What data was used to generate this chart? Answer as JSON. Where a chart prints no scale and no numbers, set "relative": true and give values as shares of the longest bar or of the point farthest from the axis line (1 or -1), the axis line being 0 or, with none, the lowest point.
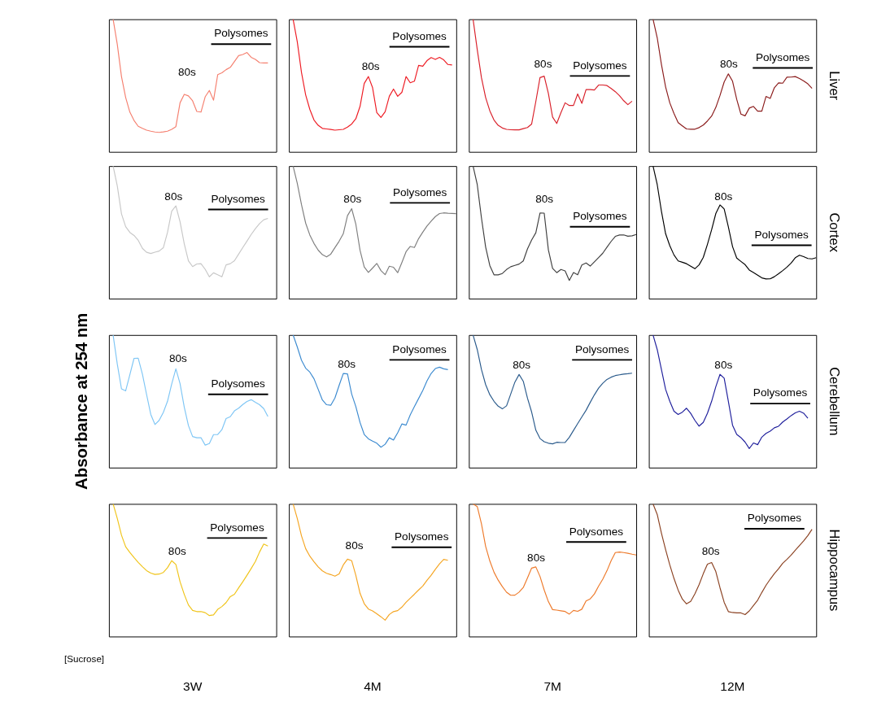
{
  "chart_data": [
    {
      "type": "line",
      "relative": true,
      "tick_labels": false,
      "categories": [
        null,
        null,
        null,
        null,
        null,
        null,
        null,
        null,
        null,
        null,
        null,
        null,
        null,
        null,
        null,
        null,
        null,
        null,
        null,
        null,
        null,
        null,
        null,
        null,
        null,
        null,
        null,
        null,
        null,
        null,
        null,
        null,
        null,
        null,
        null,
        null,
        null,
        null,
        null,
        null,
        null
      ],
      "series": [
        {
          "color": "#f58070",
          "values": [
            null,
            1.0,
            0.81,
            0.568,
            0.41,
            0.3,
            0.237,
            0.193,
            0.178,
            0.164,
            0.156,
            0.15,
            0.147,
            0.151,
            0.156,
            0.17,
            0.19,
            0.37,
            0.434,
            0.422,
            0.385,
            0.305,
            0.3,
            0.415,
            0.463,
            0.39,
            0.582,
            0.596,
            0.62,
            0.637,
            0.681,
            0.726,
            0.734,
            0.749,
            0.713,
            0.697,
            0.673,
            0.671,
            0.671,
            null,
            null
          ]
        }
      ],
      "annotations": [
        "80s",
        "Polysomes"
      ]
    },
    {
      "type": "line",
      "relative": true,
      "tick_labels": false,
      "categories": [
        null,
        null,
        null,
        null,
        null,
        null,
        null,
        null,
        null,
        null,
        null,
        null,
        null,
        null,
        null,
        null,
        null,
        null,
        null,
        null,
        null,
        null,
        null,
        null,
        null,
        null,
        null,
        null,
        null,
        null,
        null,
        null,
        null,
        null,
        null,
        null,
        null,
        null,
        null,
        null,
        null
      ],
      "series": [
        {
          "color": "#ee1c24",
          "values": [
            null,
            1.0,
            0.83,
            0.6,
            0.43,
            0.32,
            0.24,
            0.2,
            0.177,
            0.173,
            0.169,
            0.164,
            0.167,
            0.17,
            0.187,
            0.21,
            0.25,
            0.343,
            0.516,
            0.568,
            0.484,
            0.297,
            0.26,
            0.303,
            0.419,
            0.474,
            0.419,
            0.449,
            0.568,
            0.521,
            0.533,
            0.652,
            0.646,
            0.688,
            0.711,
            0.697,
            0.713,
            0.694,
            0.659,
            0.655,
            null
          ]
        }
      ],
      "annotations": [
        "80s",
        "Polysomes"
      ]
    },
    {
      "type": "line",
      "relative": true,
      "tick_labels": false,
      "categories": [
        null,
        null,
        null,
        null,
        null,
        null,
        null,
        null,
        null,
        null,
        null,
        null,
        null,
        null,
        null,
        null,
        null,
        null,
        null,
        null,
        null,
        null,
        null,
        null,
        null,
        null,
        null,
        null,
        null,
        null,
        null,
        null,
        null,
        null,
        null,
        null,
        null,
        null,
        null,
        null,
        null
      ],
      "series": [
        {
          "color": "#d9202a",
          "values": [
            null,
            1.0,
            0.77,
            0.56,
            0.41,
            0.31,
            0.24,
            0.2,
            0.18,
            0.17,
            0.167,
            0.166,
            0.166,
            0.175,
            0.184,
            0.21,
            0.38,
            0.56,
            0.571,
            0.44,
            0.263,
            0.214,
            0.296,
            0.37,
            0.35,
            0.35,
            0.437,
            0.366,
            0.47,
            0.47,
            0.467,
            0.504,
            0.504,
            0.5,
            0.478,
            0.454,
            0.424,
            0.386,
            0.356,
            0.382,
            null
          ]
        }
      ],
      "annotations": [
        "80s",
        "Polysomes"
      ]
    },
    {
      "type": "line",
      "relative": true,
      "tick_labels": false,
      "y2label": "Liver",
      "categories": [
        null,
        null,
        null,
        null,
        null,
        null,
        null,
        null,
        null,
        null,
        null,
        null,
        null,
        null,
        null,
        null,
        null,
        null,
        null,
        null,
        null,
        null,
        null,
        null,
        null,
        null,
        null,
        null,
        null,
        null,
        null,
        null,
        null,
        null,
        null,
        null,
        null,
        null,
        null,
        null,
        null
      ],
      "series": [
        {
          "color": "#8b1c1c",
          "values": [
            null,
            1.0,
            0.86,
            0.66,
            0.49,
            0.37,
            0.29,
            0.22,
            0.196,
            0.173,
            0.171,
            0.171,
            0.183,
            0.202,
            0.233,
            0.27,
            0.335,
            0.425,
            0.527,
            0.588,
            0.533,
            0.396,
            0.285,
            0.272,
            0.33,
            0.343,
            0.307,
            0.307,
            0.418,
            0.403,
            0.484,
            0.52,
            0.518,
            0.563,
            0.564,
            0.568,
            0.553,
            0.535,
            0.513,
            0.479,
            null
          ]
        }
      ],
      "annotations": [
        "80s",
        "Polysomes"
      ]
    },
    {
      "type": "line",
      "relative": true,
      "tick_labels": false,
      "categories": [
        null,
        null,
        null,
        null,
        null,
        null,
        null,
        null,
        null,
        null,
        null,
        null,
        null,
        null,
        null,
        null,
        null,
        null,
        null,
        null,
        null,
        null,
        null,
        null,
        null,
        null,
        null,
        null,
        null,
        null,
        null,
        null,
        null,
        null,
        null,
        null,
        null,
        null,
        null,
        null,
        null
      ],
      "series": [
        {
          "color": "#c8c8c8",
          "values": [
            null,
            1.0,
            0.85,
            0.64,
            0.543,
            0.5,
            0.477,
            0.44,
            0.38,
            0.35,
            0.341,
            0.351,
            0.359,
            0.384,
            0.5,
            0.66,
            0.7,
            0.58,
            0.414,
            0.285,
            0.242,
            0.262,
            0.264,
            0.222,
            0.165,
            0.195,
            0.181,
            0.165,
            0.255,
            0.264,
            0.286,
            0.336,
            0.386,
            0.434,
            0.484,
            0.528,
            0.566,
            0.595,
            0.605,
            null,
            null
          ]
        }
      ],
      "annotations": [
        "80s",
        "Polysomes"
      ]
    },
    {
      "type": "line",
      "relative": true,
      "tick_labels": false,
      "categories": [
        null,
        null,
        null,
        null,
        null,
        null,
        null,
        null,
        null,
        null,
        null,
        null,
        null,
        null,
        null,
        null,
        null,
        null,
        null,
        null,
        null,
        null,
        null,
        null,
        null,
        null,
        null,
        null,
        null,
        null,
        null,
        null,
        null,
        null,
        null,
        null,
        null,
        null,
        null,
        null,
        null
      ],
      "series": [
        {
          "color": "#7f7f7f",
          "values": [
            null,
            1.0,
            0.87,
            0.71,
            0.57,
            0.48,
            0.416,
            0.366,
            0.332,
            0.315,
            0.336,
            0.385,
            0.433,
            0.49,
            0.626,
            0.679,
            0.561,
            0.365,
            0.24,
            0.198,
            0.231,
            0.266,
            0.212,
            0.181,
            0.245,
            0.237,
            0.196,
            0.273,
            0.354,
            0.394,
            0.386,
            0.453,
            0.502,
            0.548,
            0.585,
            0.619,
            0.642,
            0.647,
            0.644,
            0.643,
            0.641
          ]
        }
      ],
      "annotations": [
        "80s",
        "Polysomes"
      ]
    },
    {
      "type": "line",
      "relative": true,
      "tick_labels": false,
      "categories": [
        null,
        null,
        null,
        null,
        null,
        null,
        null,
        null,
        null,
        null,
        null,
        null,
        null,
        null,
        null,
        null,
        null,
        null,
        null,
        null,
        null,
        null,
        null,
        null,
        null,
        null,
        null,
        null,
        null,
        null,
        null,
        null,
        null,
        null,
        null,
        null,
        null,
        null,
        null,
        null,
        null
      ],
      "series": [
        {
          "color": "#404040",
          "values": [
            null,
            1.0,
            0.86,
            0.61,
            0.39,
            0.25,
            0.18,
            0.18,
            0.19,
            0.22,
            0.241,
            0.251,
            0.261,
            0.285,
            0.375,
            0.443,
            0.497,
            0.646,
            0.645,
            0.368,
            0.229,
            0.196,
            0.22,
            0.21,
            0.138,
            0.197,
            0.18,
            0.254,
            0.269,
            0.246,
            0.278,
            0.31,
            0.343,
            0.388,
            0.432,
            0.47,
            0.48,
            0.481,
            0.471,
            0.474,
            0.484
          ]
        }
      ],
      "annotations": [
        "80s",
        "Polysomes"
      ]
    },
    {
      "type": "line",
      "relative": true,
      "tick_labels": false,
      "y2label": "Cortex",
      "categories": [
        null,
        null,
        null,
        null,
        null,
        null,
        null,
        null,
        null,
        null,
        null,
        null,
        null,
        null,
        null,
        null,
        null,
        null,
        null,
        null,
        null,
        null,
        null,
        null,
        null,
        null,
        null,
        null,
        null,
        null,
        null,
        null,
        null,
        null,
        null,
        null,
        null,
        null,
        null,
        null,
        null
      ],
      "series": [
        {
          "color": "#000000",
          "values": [
            null,
            1.0,
            0.86,
            0.66,
            0.49,
            0.4,
            0.33,
            0.285,
            0.275,
            0.264,
            0.245,
            0.226,
            0.255,
            0.311,
            0.41,
            0.52,
            0.642,
            0.707,
            0.677,
            0.541,
            0.393,
            0.306,
            0.281,
            0.257,
            0.216,
            0.197,
            0.177,
            0.157,
            0.149,
            0.15,
            0.166,
            0.188,
            0.212,
            0.238,
            0.269,
            0.309,
            0.328,
            0.317,
            0.303,
            0.3,
            0.309
          ]
        }
      ],
      "annotations": [
        "80s",
        "Polysomes"
      ]
    },
    {
      "type": "line",
      "relative": true,
      "tick_labels": false,
      "ylabel": "Absorbance at 254 nm",
      "categories": [
        null,
        null,
        null,
        null,
        null,
        null,
        null,
        null,
        null,
        null,
        null,
        null,
        null,
        null,
        null,
        null,
        null,
        null,
        null,
        null,
        null,
        null,
        null,
        null,
        null,
        null,
        null,
        null,
        null,
        null,
        null,
        null,
        null,
        null,
        null,
        null,
        null,
        null,
        null,
        null,
        null
      ],
      "series": [
        {
          "color": "#7fc6f5",
          "values": [
            null,
            1.0,
            0.78,
            0.594,
            0.579,
            0.7,
            0.824,
            0.825,
            0.705,
            0.551,
            0.401,
            0.325,
            0.356,
            0.416,
            0.5,
            0.63,
            0.745,
            0.633,
            0.457,
            0.317,
            0.234,
            0.225,
            0.226,
            0.17,
            0.181,
            0.249,
            0.249,
            0.286,
            0.37,
            0.384,
            0.428,
            0.448,
            0.476,
            0.499,
            0.512,
            0.492,
            0.474,
            0.445,
            0.385,
            null,
            null
          ]
        }
      ],
      "annotations": [
        "80s",
        "Polysomes"
      ]
    },
    {
      "type": "line",
      "relative": true,
      "tick_labels": false,
      "categories": [
        null,
        null,
        null,
        null,
        null,
        null,
        null,
        null,
        null,
        null,
        null,
        null,
        null,
        null,
        null,
        null,
        null,
        null,
        null,
        null,
        null,
        null,
        null,
        null,
        null,
        null,
        null,
        null,
        null,
        null,
        null,
        null,
        null,
        null,
        null,
        null,
        null,
        null,
        null,
        null,
        null
      ],
      "series": [
        {
          "color": "#3d8bd0",
          "values": [
            null,
            1.0,
            0.91,
            0.81,
            0.75,
            0.72,
            0.67,
            0.59,
            0.51,
            0.474,
            0.47,
            0.525,
            0.62,
            0.71,
            0.707,
            0.555,
            0.46,
            0.34,
            0.25,
            0.217,
            0.2,
            0.184,
            0.154,
            0.176,
            0.225,
            0.208,
            0.263,
            0.329,
            0.32,
            0.398,
            0.46,
            0.521,
            0.582,
            0.654,
            0.71,
            0.747,
            0.757,
            0.745,
            0.739,
            null,
            null
          ]
        }
      ],
      "annotations": [
        "80s",
        "Polysomes"
      ]
    },
    {
      "type": "line",
      "relative": true,
      "tick_labels": false,
      "categories": [
        null,
        null,
        null,
        null,
        null,
        null,
        null,
        null,
        null,
        null,
        null,
        null,
        null,
        null,
        null,
        null,
        null,
        null,
        null,
        null,
        null,
        null,
        null,
        null,
        null,
        null,
        null,
        null,
        null,
        null,
        null,
        null,
        null,
        null,
        null,
        null,
        null,
        null,
        null,
        null,
        null
      ],
      "series": [
        {
          "color": "#2b5b8c",
          "values": [
            null,
            1.0,
            0.89,
            0.74,
            0.626,
            0.55,
            0.5,
            0.463,
            0.443,
            0.466,
            0.555,
            0.645,
            0.702,
            0.651,
            0.524,
            0.419,
            0.282,
            0.219,
            0.195,
            0.184,
            0.179,
            0.191,
            0.189,
            0.19,
            0.228,
            0.28,
            0.332,
            0.382,
            0.432,
            0.492,
            0.549,
            0.599,
            0.636,
            0.665,
            0.682,
            0.694,
            0.7,
            0.705,
            0.708,
            0.712,
            null
          ]
        }
      ],
      "annotations": [
        "80s",
        "Polysomes"
      ]
    },
    {
      "type": "line",
      "relative": true,
      "tick_labels": false,
      "y2label": "Cerebellum",
      "categories": [
        null,
        null,
        null,
        null,
        null,
        null,
        null,
        null,
        null,
        null,
        null,
        null,
        null,
        null,
        null,
        null,
        null,
        null,
        null,
        null,
        null,
        null,
        null,
        null,
        null,
        null,
        null,
        null,
        null,
        null,
        null,
        null,
        null,
        null,
        null,
        null,
        null,
        null,
        null,
        null,
        null
      ],
      "series": [
        {
          "color": "#1f1f9c",
          "values": [
            null,
            1.0,
            0.89,
            0.74,
            0.59,
            0.5,
            0.425,
            0.401,
            0.418,
            0.448,
            0.409,
            0.356,
            0.313,
            0.341,
            0.41,
            0.5,
            0.61,
            0.703,
            0.674,
            0.5,
            0.32,
            0.25,
            0.226,
            0.192,
            0.144,
            0.186,
            0.173,
            0.23,
            0.258,
            0.275,
            0.3,
            0.312,
            0.344,
            0.367,
            0.392,
            0.413,
            0.425,
            0.41,
            0.372,
            null,
            null
          ]
        }
      ],
      "annotations": [
        "80s",
        "Polysomes"
      ]
    },
    {
      "type": "line",
      "relative": true,
      "tick_labels": false,
      "xlabel": "3W",
      "categories": [
        null,
        null,
        null,
        null,
        null,
        null,
        null,
        null,
        null,
        null,
        null,
        null,
        null,
        null,
        null,
        null,
        null,
        null,
        null,
        null,
        null,
        null,
        null,
        null,
        null,
        null,
        null,
        null,
        null,
        null,
        null,
        null,
        null,
        null,
        null,
        null,
        null,
        null,
        null,
        null,
        null
      ],
      "series": [
        {
          "color": "#f0c419",
          "values": [
            null,
            1.0,
            0.89,
            0.764,
            0.677,
            0.634,
            0.595,
            0.559,
            0.527,
            0.497,
            0.478,
            0.468,
            0.471,
            0.483,
            0.519,
            0.572,
            0.543,
            0.413,
            0.318,
            0.238,
            0.197,
            0.188,
            0.188,
            0.18,
            0.158,
            0.163,
            0.205,
            0.226,
            0.256,
            0.301,
            0.319,
            0.367,
            0.413,
            0.462,
            0.513,
            0.566,
            0.637,
            0.697,
            0.682,
            null,
            null
          ]
        }
      ],
      "annotations": [
        "80s",
        "Polysomes",
        "[Sucrose]"
      ]
    },
    {
      "type": "line",
      "relative": true,
      "tick_labels": false,
      "xlabel": "4M",
      "categories": [
        null,
        null,
        null,
        null,
        null,
        null,
        null,
        null,
        null,
        null,
        null,
        null,
        null,
        null,
        null,
        null,
        null,
        null,
        null,
        null,
        null,
        null,
        null,
        null,
        null,
        null,
        null,
        null,
        null,
        null,
        null,
        null,
        null,
        null,
        null,
        null,
        null,
        null,
        null,
        null,
        null
      ],
      "series": [
        {
          "color": "#f5a623",
          "values": [
            null,
            1.0,
            0.89,
            0.76,
            0.663,
            0.606,
            0.563,
            0.525,
            0.495,
            0.477,
            0.467,
            0.455,
            0.472,
            0.54,
            0.583,
            0.572,
            0.461,
            0.326,
            0.248,
            0.207,
            0.193,
            0.172,
            0.149,
            0.123,
            0.166,
            0.188,
            0.195,
            0.222,
            0.258,
            0.289,
            0.319,
            0.351,
            0.381,
            0.424,
            0.462,
            0.507,
            0.548,
            0.582,
            0.575,
            null,
            null
          ]
        }
      ],
      "annotations": [
        "80s",
        "Polysomes"
      ]
    },
    {
      "type": "line",
      "relative": true,
      "tick_labels": false,
      "xlabel": "7M",
      "categories": [
        null,
        null,
        null,
        null,
        null,
        null,
        null,
        null,
        null,
        null,
        null,
        null,
        null,
        null,
        null,
        null,
        null,
        null,
        null,
        null,
        null,
        null,
        null,
        null,
        null,
        null,
        null,
        null,
        null,
        null,
        null,
        null,
        null,
        null,
        null,
        null,
        null,
        null,
        null,
        null,
        null
      ],
      "series": [
        {
          "color": "#ee7b2c",
          "values": [
            null,
            1.0,
            0.98,
            0.85,
            0.68,
            0.57,
            0.485,
            0.425,
            0.376,
            0.334,
            0.311,
            0.312,
            0.335,
            0.37,
            0.441,
            0.516,
            0.525,
            0.453,
            0.351,
            0.263,
            0.203,
            0.199,
            0.194,
            0.189,
            0.169,
            0.197,
            0.19,
            0.206,
            0.268,
            0.284,
            0.321,
            0.38,
            0.432,
            0.496,
            0.572,
            0.633,
            0.637,
            0.633,
            0.628,
            0.621,
            0.615
          ]
        }
      ],
      "annotations": [
        "80s",
        "Polysomes"
      ]
    },
    {
      "type": "line",
      "relative": true,
      "tick_labels": false,
      "xlabel": "12M",
      "y2label": "Hippocampus",
      "categories": [
        null,
        null,
        null,
        null,
        null,
        null,
        null,
        null,
        null,
        null,
        null,
        null,
        null,
        null,
        null,
        null,
        null,
        null,
        null,
        null,
        null,
        null,
        null,
        null,
        null,
        null,
        null,
        null,
        null,
        null,
        null,
        null,
        null,
        null,
        null,
        null,
        null,
        null,
        null,
        null,
        null
      ],
      "series": [
        {
          "color": "#8b4222",
          "values": [
            null,
            1.0,
            0.92,
            0.78,
            0.655,
            0.54,
            0.438,
            0.35,
            0.282,
            0.246,
            0.265,
            0.322,
            0.391,
            0.473,
            0.546,
            0.558,
            0.49,
            0.368,
            0.258,
            0.188,
            0.181,
            0.178,
            0.178,
            0.165,
            0.193,
            0.233,
            0.274,
            0.332,
            0.386,
            0.432,
            0.474,
            0.511,
            0.553,
            0.582,
            0.614,
            0.651,
            0.686,
            0.721,
            0.761,
            0.809,
            null
          ]
        }
      ],
      "annotations": [
        "80s",
        "Polysomes"
      ]
    }
  ]
}
